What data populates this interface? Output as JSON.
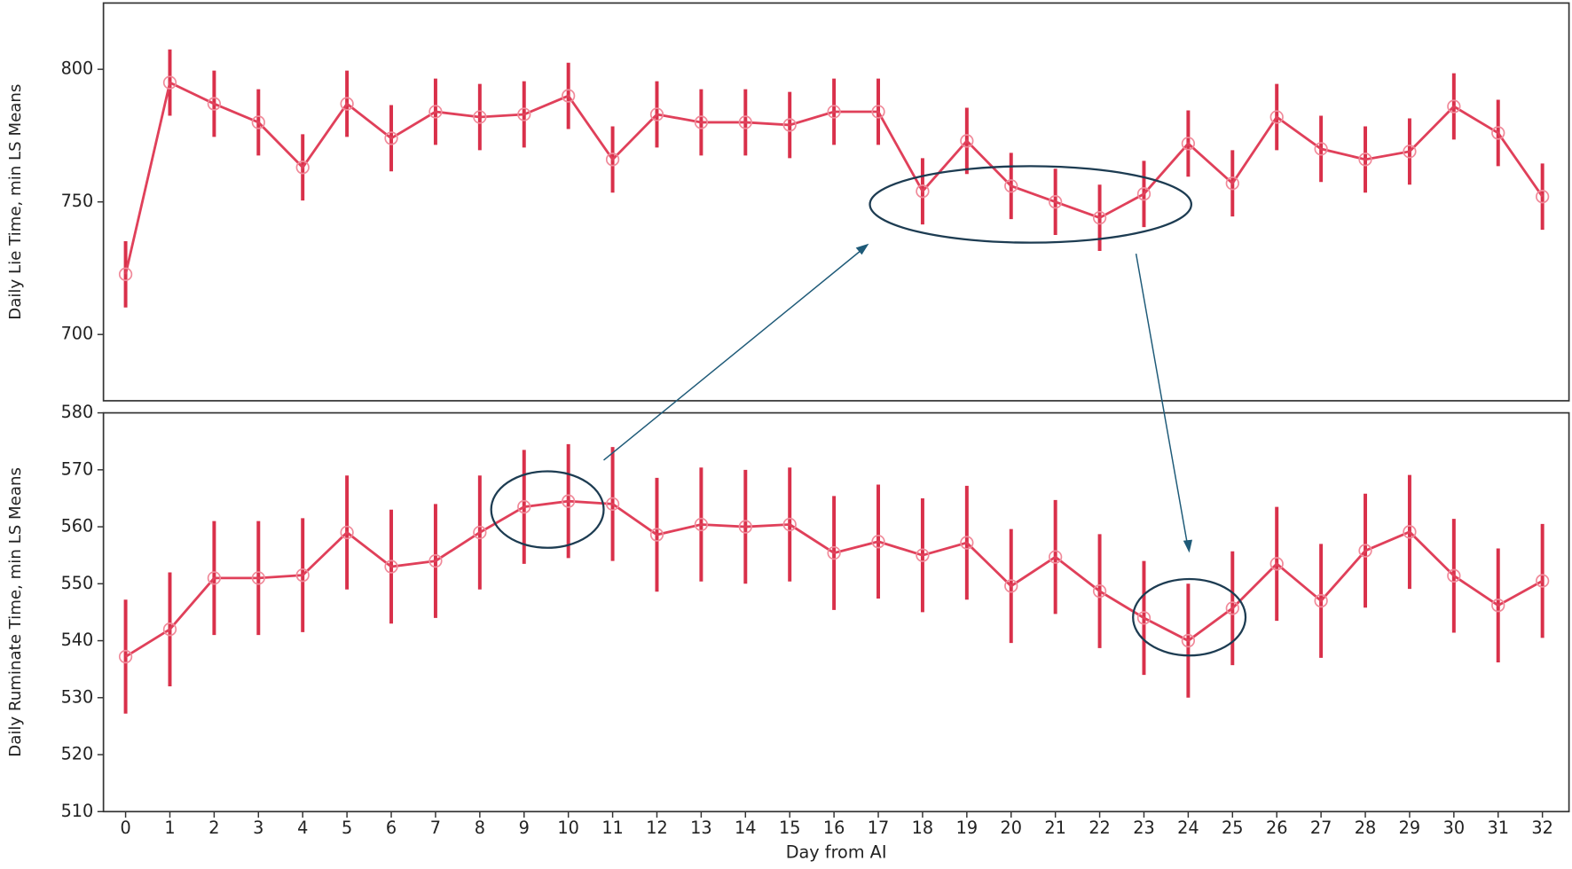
{
  "chart_data": [
    {
      "type": "line",
      "y_label": "Daily Lie Time, min LS Means",
      "x": [
        0,
        1,
        2,
        3,
        4,
        5,
        6,
        7,
        8,
        9,
        10,
        11,
        12,
        13,
        14,
        15,
        16,
        17,
        18,
        19,
        20,
        21,
        22,
        23,
        24,
        25,
        26,
        27,
        28,
        29,
        30,
        31,
        32
      ],
      "xlim": [
        -0.5,
        32.6
      ],
      "values": [
        722.7,
        795,
        787,
        780,
        763,
        787,
        774,
        784,
        782,
        783,
        790,
        766,
        783,
        780,
        780,
        779,
        784,
        784,
        754,
        773,
        756,
        750,
        744,
        753,
        772,
        757,
        782,
        770,
        766,
        769,
        786,
        776,
        752
      ],
      "errors": [
        12.5,
        12.5,
        12.5,
        12.5,
        12.5,
        12.5,
        12.5,
        12.5,
        12.5,
        12.5,
        12.5,
        12.5,
        12.5,
        12.5,
        12.5,
        12.5,
        12.5,
        12.5,
        12.5,
        12.5,
        12.5,
        12.5,
        12.5,
        12.5,
        12.5,
        12.5,
        12.5,
        12.5,
        12.5,
        12.5,
        12.5,
        12.5,
        12.5
      ],
      "color": "#e0405a",
      "ylim": [
        675,
        825
      ],
      "yticks": [
        700,
        750,
        800
      ]
    },
    {
      "type": "line",
      "y_label": "Daily Ruminate Time, min LS Means",
      "x_label": "Day from AI",
      "x": [
        0,
        1,
        2,
        3,
        4,
        5,
        6,
        7,
        8,
        9,
        10,
        11,
        12,
        13,
        14,
        15,
        16,
        17,
        18,
        19,
        20,
        21,
        22,
        23,
        24,
        25,
        26,
        27,
        28,
        29,
        30,
        31,
        32
      ],
      "xlim": [
        -0.5,
        32.6
      ],
      "xticks": [
        0,
        1,
        2,
        3,
        4,
        5,
        6,
        7,
        8,
        9,
        10,
        11,
        12,
        13,
        14,
        15,
        16,
        17,
        18,
        19,
        20,
        21,
        22,
        23,
        24,
        25,
        26,
        27,
        28,
        29,
        30,
        31,
        32
      ],
      "values": [
        537.2,
        542,
        551,
        551,
        551.5,
        559,
        553,
        554,
        559,
        563.5,
        564.5,
        564,
        558.6,
        560.4,
        560,
        560.4,
        555.4,
        557.4,
        555,
        557.2,
        549.6,
        554.7,
        548.7,
        544,
        540,
        545.7,
        553.5,
        547,
        555.8,
        559.1,
        551.4,
        546.2,
        550.5
      ],
      "errors": [
        10,
        10,
        10,
        10,
        10,
        10,
        10,
        10,
        10,
        10,
        10,
        10,
        10,
        10,
        10,
        10,
        10,
        10,
        10,
        10,
        10,
        10,
        10,
        10,
        10,
        10,
        10,
        10,
        10,
        10,
        10,
        10,
        10
      ],
      "color": "#e0405a",
      "ylim": [
        510,
        580
      ],
      "yticks": [
        510,
        520,
        530,
        540,
        550,
        560,
        570,
        580
      ]
    }
  ]
}
